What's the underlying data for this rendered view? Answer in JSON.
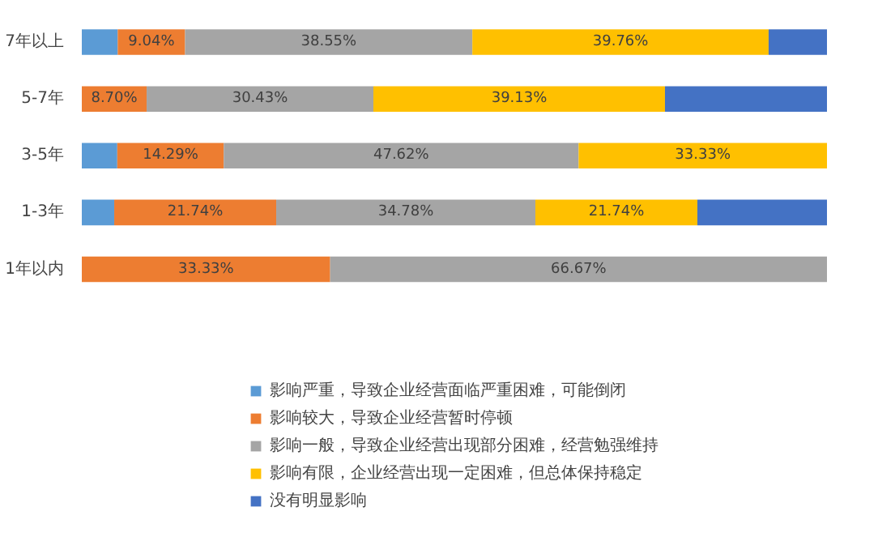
{
  "chart_data": {
    "type": "bar",
    "orientation": "horizontal",
    "stacked": true,
    "categories": [
      "7年以上",
      "5-7年",
      "3-5年",
      "1-3年",
      "1年以内"
    ],
    "xlim": [
      0,
      100
    ],
    "tick_labels": "y",
    "legend": "bottom",
    "grid": false,
    "series": [
      {
        "name": "影响严重，导致企业经营面临严重困难，可能倒闭",
        "color": "#5b9bd5",
        "values": [
          4.82,
          0,
          4.76,
          4.35,
          0
        ],
        "value_labels": [
          null,
          null,
          null,
          null,
          null
        ]
      },
      {
        "name": "影响较大，导致企业经营暂时停顿",
        "color": "#ed7d31",
        "values": [
          9.04,
          8.7,
          14.29,
          21.74,
          33.33
        ],
        "value_labels": [
          "9.04%",
          "8.70%",
          "14.29%",
          "21.74%",
          "33.33%"
        ]
      },
      {
        "name": "影响一般，导致企业经营出现部分困难，经营勉强维持",
        "color": "#a5a5a5",
        "values": [
          38.55,
          30.43,
          47.62,
          34.78,
          66.67
        ],
        "value_labels": [
          "38.55%",
          "30.43%",
          "47.62%",
          "34.78%",
          "66.67%"
        ]
      },
      {
        "name": "影响有限，企业经营出现一定困难，但总体保持稳定",
        "color": "#ffc000",
        "values": [
          39.76,
          39.13,
          33.33,
          21.74,
          0
        ],
        "value_labels": [
          "39.76%",
          "39.13%",
          "33.33%",
          "21.74%",
          null
        ]
      },
      {
        "name": "没有明显影响",
        "color": "#4472c4",
        "values": [
          7.83,
          21.74,
          0,
          17.39,
          0
        ],
        "value_labels": [
          null,
          null,
          null,
          null,
          null
        ]
      }
    ]
  }
}
